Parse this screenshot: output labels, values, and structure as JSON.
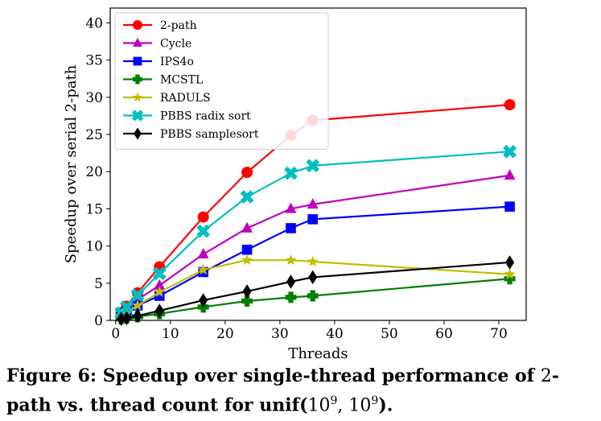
{
  "chart_data": {
    "type": "line",
    "xlabel": "Threads",
    "ylabel": "Speedup over serial 2-path",
    "xlim": [
      -1,
      75
    ],
    "ylim": [
      0,
      42
    ],
    "xticks": [
      0,
      10,
      20,
      30,
      40,
      50,
      60,
      70
    ],
    "yticks": [
      0,
      5,
      10,
      15,
      20,
      25,
      30,
      35,
      40
    ],
    "legend_position": "top-left",
    "x": [
      1,
      2,
      4,
      8,
      16,
      24,
      32,
      36,
      72
    ],
    "series": [
      {
        "name": "2-path",
        "color": "#ff0000",
        "marker": "circle",
        "values": [
          1.0,
          1.9,
          3.7,
          7.2,
          13.9,
          19.9,
          24.9,
          26.9,
          29.0
        ]
      },
      {
        "name": "Cycle",
        "color": "#bf00bf",
        "marker": "triangle",
        "values": [
          0.8,
          1.5,
          2.8,
          4.7,
          8.9,
          12.4,
          15.0,
          15.6,
          19.5
        ]
      },
      {
        "name": "IPS4o",
        "color": "#0000ff",
        "marker": "square",
        "values": [
          0.6,
          1.2,
          2.0,
          3.3,
          6.5,
          9.5,
          12.4,
          13.6,
          15.3
        ]
      },
      {
        "name": "MCSTL",
        "color": "#008000",
        "marker": "plus",
        "values": [
          0.2,
          0.3,
          0.5,
          0.9,
          1.8,
          2.6,
          3.1,
          3.3,
          5.6
        ]
      },
      {
        "name": "RADULS",
        "color": "#bfbf00",
        "marker": "star",
        "values": [
          0.6,
          1.1,
          2.0,
          3.8,
          6.8,
          8.1,
          8.1,
          7.9,
          6.2
        ]
      },
      {
        "name": "PBBS radix sort",
        "color": "#00bfbf",
        "marker": "x",
        "values": [
          1.0,
          1.8,
          3.4,
          6.3,
          12.0,
          16.6,
          19.8,
          20.8,
          22.7
        ]
      },
      {
        "name": "PBBS samplesort",
        "color": "#000000",
        "marker": "diamond",
        "values": [
          0.2,
          0.3,
          0.6,
          1.3,
          2.7,
          3.9,
          5.2,
          5.8,
          7.8
        ]
      }
    ]
  },
  "caption": {
    "text": "Figure 6: Speedup over single-thread performance of ",
    "math1": "2",
    "text2": "-path vs. thread count for unif(",
    "math2": "10",
    "sup1": "9",
    "sep": ", ",
    "math3": "10",
    "sup2": "9",
    "text3": ")."
  }
}
